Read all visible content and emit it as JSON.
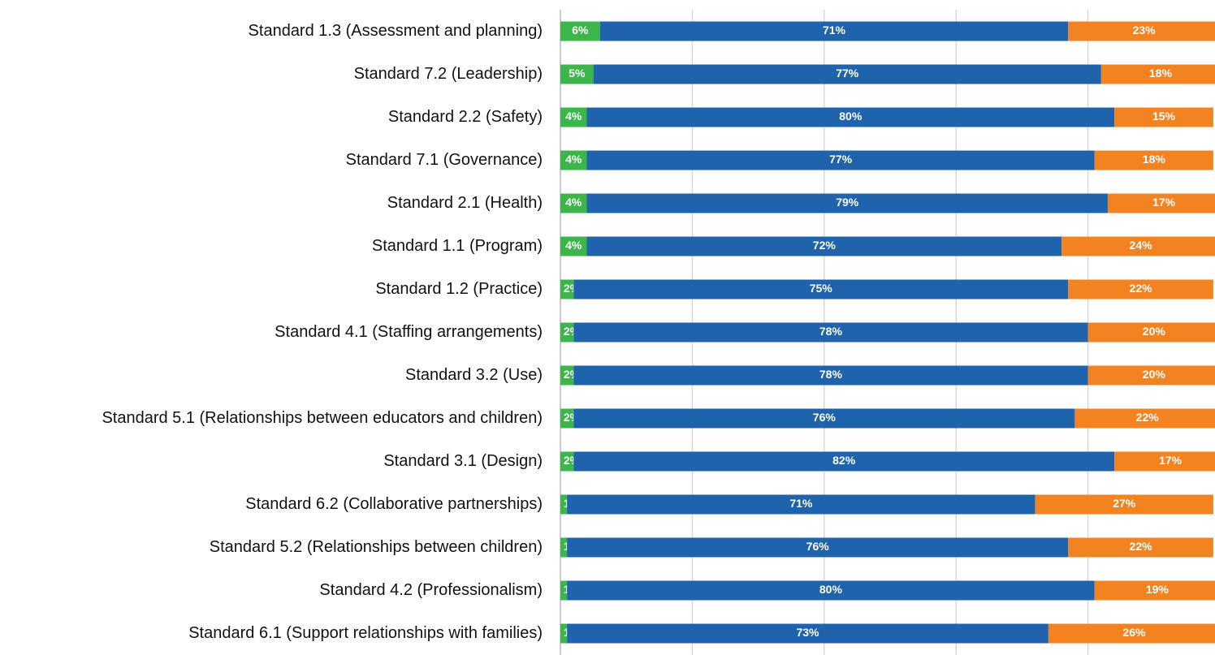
{
  "chart_data": {
    "type": "stacked-bar-horizontal",
    "categories": [
      "Standard 1.3 (Assessment and planning)",
      "Standard 7.2 (Leadership)",
      "Standard 2.2 (Safety)",
      "Standard 7.1 (Governance)",
      "Standard 2.1 (Health)",
      "Standard 1.1 (Program)",
      "Standard 1.2 (Practice)",
      "Standard 4.1 (Staffing arrangements)",
      "Standard 3.2 (Use)",
      "Standard 5.1 (Relationships between educators and children)",
      "Standard 3.1 (Design)",
      "Standard 6.2 (Collaborative partnerships)",
      "Standard 5.2 (Relationships between children)",
      "Standard 4.2 (Professionalism)",
      "Standard 6.1 (Support relationships with families)"
    ],
    "series": [
      {
        "color": "#3cb54a",
        "values": [
          6,
          5,
          4,
          4,
          4,
          4,
          2,
          2,
          2,
          2,
          2,
          1,
          1,
          1,
          1
        ],
        "value_labels": [
          "6%",
          "5%",
          "4%",
          "4%",
          "4%",
          "4%",
          "2%",
          "2%",
          "2%",
          "2%",
          "2%",
          "1%",
          "1%",
          "1%",
          "1%"
        ]
      },
      {
        "color": "#1f63ad",
        "values": [
          71,
          77,
          80,
          77,
          79,
          72,
          75,
          78,
          78,
          76,
          82,
          71,
          76,
          80,
          73
        ],
        "value_labels": [
          "71%",
          "77%",
          "80%",
          "77%",
          "79%",
          "72%",
          "75%",
          "78%",
          "78%",
          "76%",
          "82%",
          "71%",
          "76%",
          "80%",
          "73%"
        ]
      },
      {
        "color": "#f38221",
        "values": [
          23,
          18,
          15,
          18,
          17,
          24,
          22,
          20,
          20,
          22,
          17,
          27,
          22,
          19,
          26
        ],
        "value_labels": [
          "23%",
          "18%",
          "15%",
          "18%",
          "17%",
          "24%",
          "22%",
          "20%",
          "20%",
          "22%",
          "17%",
          "27%",
          "22%",
          "19%",
          "26%"
        ]
      }
    ],
    "xlim": [
      0,
      100
    ],
    "xticks": [
      0,
      20,
      40,
      60,
      80,
      100
    ],
    "grid": true
  }
}
